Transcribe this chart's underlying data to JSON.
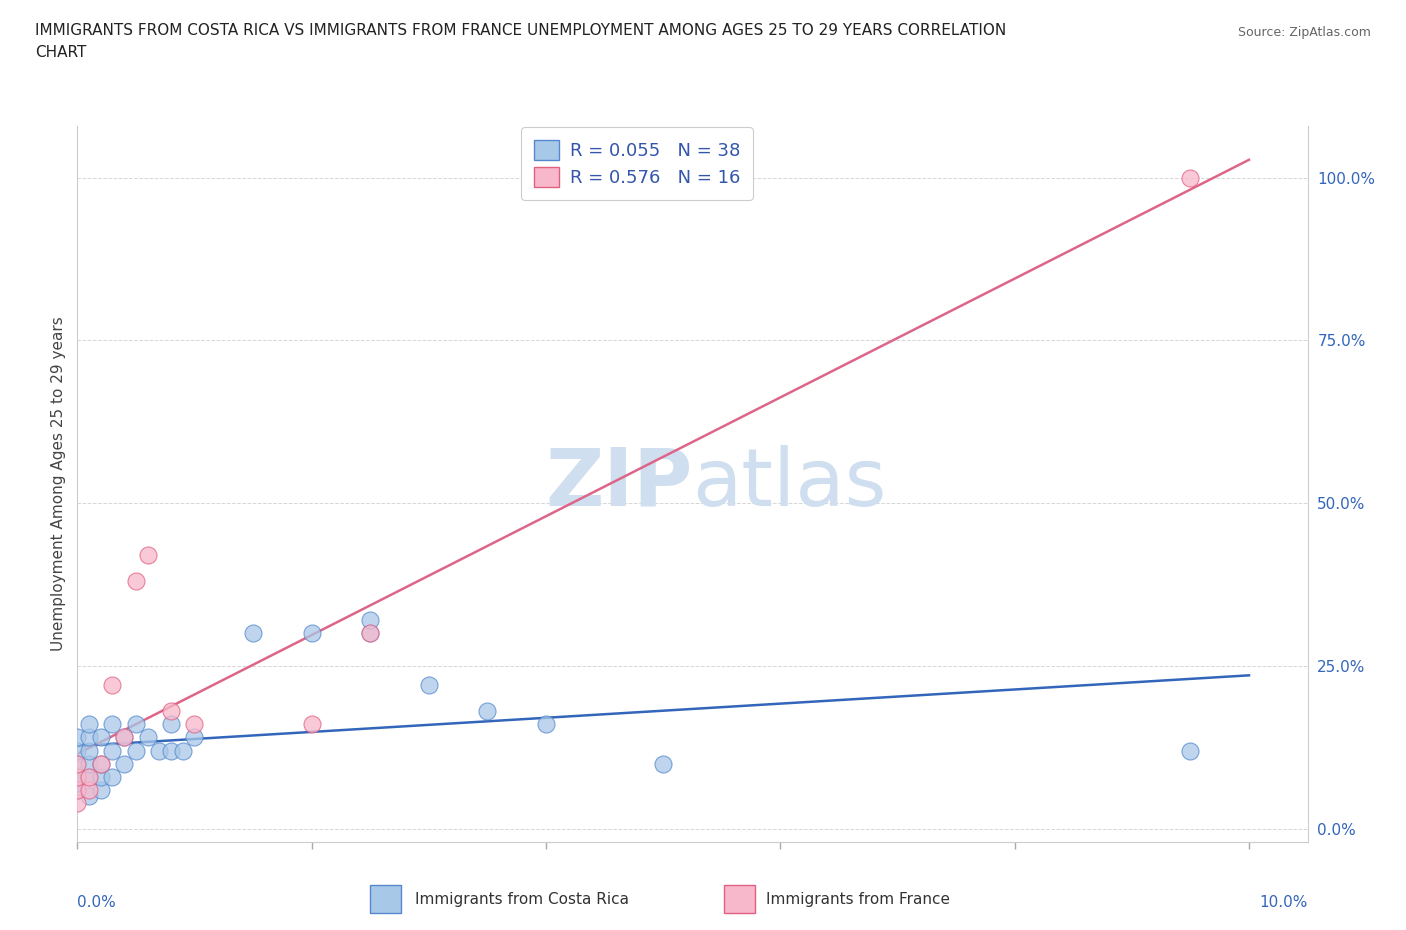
{
  "title_line1": "IMMIGRANTS FROM COSTA RICA VS IMMIGRANTS FROM FRANCE UNEMPLOYMENT AMONG AGES 25 TO 29 YEARS CORRELATION",
  "title_line2": "CHART",
  "source": "Source: ZipAtlas.com",
  "ylabel": "Unemployment Among Ages 25 to 29 years",
  "costa_rica_color": "#a8c8e8",
  "france_color": "#f8b8cc",
  "costa_rica_edge": "#5588cc",
  "france_edge": "#e06080",
  "trendline_costa_rica_color": "#3366bb",
  "trendline_france_color": "#dd6688",
  "legend_R1": "R = 0.055",
  "legend_N1": "N = 38",
  "legend_R2": "R = 0.576",
  "legend_N2": "N = 16",
  "legend_text_color": "#3355aa",
  "watermark_color": "#d0dff0",
  "xlim": [
    0.0,
    0.105
  ],
  "ylim": [
    -0.02,
    1.08
  ],
  "ytick_values": [
    0.0,
    0.25,
    0.5,
    0.75,
    1.0
  ],
  "costa_rica_x": [
    0.0,
    0.0,
    0.0,
    0.0,
    0.0,
    0.0,
    0.001,
    0.001,
    0.001,
    0.001,
    0.001,
    0.001,
    0.002,
    0.002,
    0.002,
    0.002,
    0.003,
    0.003,
    0.003,
    0.004,
    0.004,
    0.005,
    0.005,
    0.006,
    0.007,
    0.008,
    0.008,
    0.009,
    0.01,
    0.015,
    0.02,
    0.025,
    0.025,
    0.03,
    0.035,
    0.04,
    0.05,
    0.095
  ],
  "costa_rica_y": [
    0.06,
    0.07,
    0.08,
    0.1,
    0.12,
    0.14,
    0.05,
    0.08,
    0.1,
    0.12,
    0.14,
    0.16,
    0.06,
    0.08,
    0.1,
    0.14,
    0.08,
    0.12,
    0.16,
    0.1,
    0.14,
    0.12,
    0.16,
    0.14,
    0.12,
    0.12,
    0.16,
    0.12,
    0.14,
    0.3,
    0.3,
    0.3,
    0.32,
    0.22,
    0.18,
    0.16,
    0.1,
    0.12
  ],
  "france_x": [
    0.0,
    0.0,
    0.0,
    0.0,
    0.001,
    0.001,
    0.002,
    0.003,
    0.004,
    0.005,
    0.006,
    0.008,
    0.01,
    0.02,
    0.025,
    0.095
  ],
  "france_y": [
    0.04,
    0.06,
    0.08,
    0.1,
    0.06,
    0.08,
    0.1,
    0.22,
    0.14,
    0.38,
    0.42,
    0.18,
    0.16,
    0.16,
    0.3,
    1.0
  ]
}
